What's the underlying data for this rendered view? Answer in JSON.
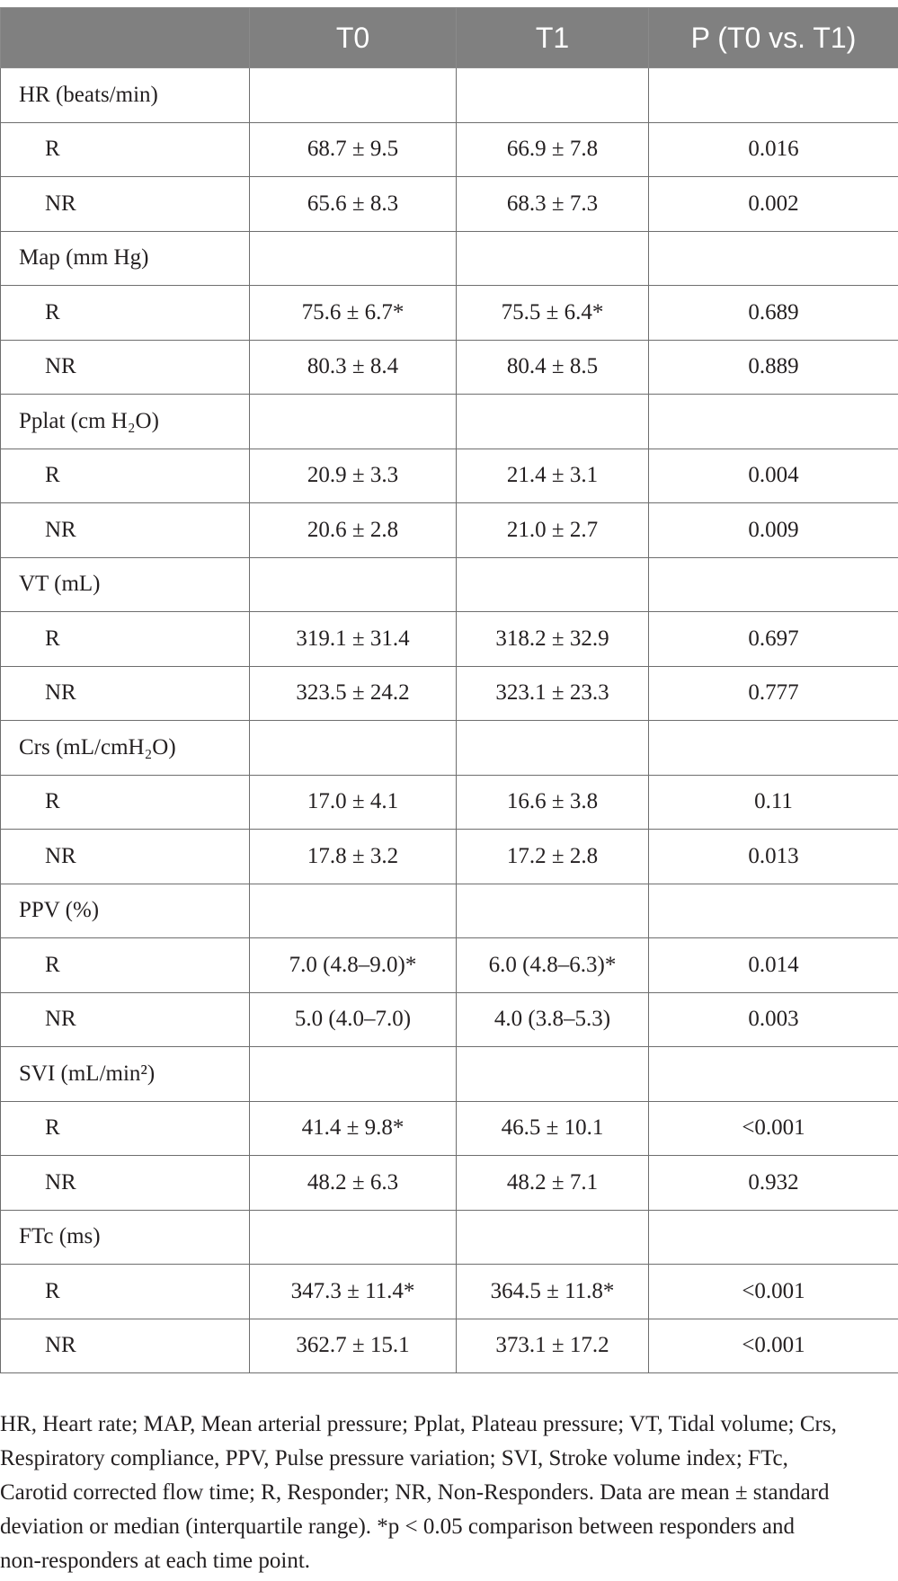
{
  "header": {
    "col0": "",
    "col1": "T0",
    "col2": "T1",
    "col3": "P (T0 vs. T1)"
  },
  "groups": [
    {
      "label": "HR (beats/min)",
      "rows": [
        {
          "group": "R",
          "t0": "68.7 ± 9.5",
          "t1": "66.9 ± 7.8",
          "p": "0.016"
        },
        {
          "group": "NR",
          "t0": "65.6 ± 8.3",
          "t1": "68.3 ± 7.3",
          "p": "0.002"
        }
      ]
    },
    {
      "label": "Map (mm Hg)",
      "rows": [
        {
          "group": "R",
          "t0": "75.6 ± 6.7*",
          "t1": "75.5 ± 6.4*",
          "p": "0.689"
        },
        {
          "group": "NR",
          "t0": "80.3 ± 8.4",
          "t1": "80.4 ± 8.5",
          "p": "0.889"
        }
      ]
    },
    {
      "label": "Pplat (cm H₂O)",
      "rows": [
        {
          "group": "R",
          "t0": "20.9 ± 3.3",
          "t1": "21.4 ± 3.1",
          "p": "0.004"
        },
        {
          "group": "NR",
          "t0": "20.6 ± 2.8",
          "t1": "21.0 ± 2.7",
          "p": "0.009"
        }
      ]
    },
    {
      "label": "VT (mL)",
      "rows": [
        {
          "group": "R",
          "t0": "319.1 ± 31.4",
          "t1": "318.2 ± 32.9",
          "p": "0.697"
        },
        {
          "group": "NR",
          "t0": "323.5 ± 24.2",
          "t1": "323.1 ± 23.3",
          "p": "0.777"
        }
      ]
    },
    {
      "label": "Crs (mL/cmH₂O)",
      "rows": [
        {
          "group": "R",
          "t0": "17.0 ± 4.1",
          "t1": "16.6 ± 3.8",
          "p": "0.11"
        },
        {
          "group": "NR",
          "t0": "17.8 ± 3.2",
          "t1": "17.2 ± 2.8",
          "p": "0.013"
        }
      ]
    },
    {
      "label": "PPV (%)",
      "rows": [
        {
          "group": "R",
          "t0": "7.0 (4.8–9.0)*",
          "t1": "6.0 (4.8–6.3)*",
          "p": "0.014"
        },
        {
          "group": "NR",
          "t0": "5.0 (4.0–7.0)",
          "t1": "4.0 (3.8–5.3)",
          "p": "0.003"
        }
      ]
    },
    {
      "label": "SVI (mL/min²)",
      "rows": [
        {
          "group": "R",
          "t0": "41.4 ± 9.8*",
          "t1": "46.5 ± 10.1",
          "p": "<0.001"
        },
        {
          "group": "NR",
          "t0": "48.2 ± 6.3",
          "t1": "48.2 ± 7.1",
          "p": "0.932"
        }
      ]
    },
    {
      "label": "FTc (ms)",
      "rows": [
        {
          "group": "R",
          "t0": "347.3 ± 11.4*",
          "t1": "364.5 ± 11.8*",
          "p": "<0.001"
        },
        {
          "group": "NR",
          "t0": "362.7 ± 15.1",
          "t1": "373.1 ± 17.2",
          "p": "<0.001"
        }
      ]
    }
  ],
  "footnote": {
    "line1": "HR, Heart rate; MAP, Mean arterial pressure; Pplat, Plateau pressure; VT, Tidal volume; Crs,",
    "line2": "Respiratory compliance, PPV, Pulse pressure variation; SVI, Stroke volume index; FTc,",
    "line3": "Carotid corrected flow time; R, Responder; NR, Non-Responders. Data are mean ± standard",
    "line4": "deviation or median (interquartile range). *p < 0.05 comparison between responders and",
    "line5": "non-responders at each time point."
  }
}
